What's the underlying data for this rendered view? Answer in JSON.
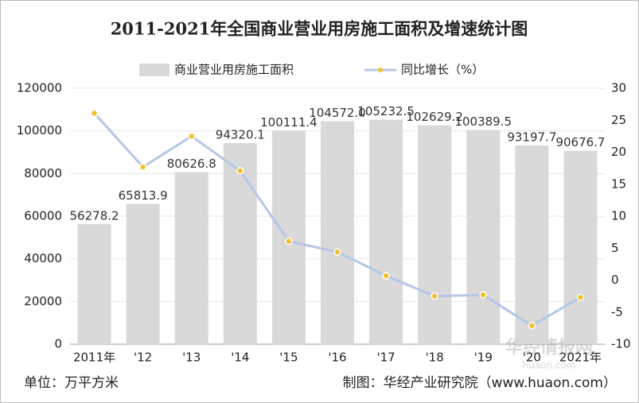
{
  "chart_data": {
    "type": "bar",
    "title": "2011-2021年全国商业营业用房施工面积及增速统计图",
    "categories": [
      "2011年",
      "'12",
      "'13",
      "'14",
      "'15",
      "'16",
      "'17",
      "'18",
      "'19",
      "'20",
      "2021年"
    ],
    "series": [
      {
        "name": "商业营业用房施工面积",
        "color": "#d9d9d9",
        "values": [
          56278.2,
          65813.9,
          80626.8,
          94320.1,
          100111.4,
          104572.0,
          105232.5,
          102629.2,
          100389.5,
          93197.7,
          90676.7
        ],
        "value_labels": [
          "56278.2",
          "65813.9",
          "80626.8",
          "94320.1",
          "100111.4",
          "104572.0",
          "105232.5",
          "102629.2",
          "100389.5",
          "93197.7",
          "90676.7"
        ]
      },
      {
        "name": "同比增长（%）",
        "type": "line",
        "axis": "y2",
        "color": "#b4c7e7",
        "marker_color": "#f2c230",
        "values": [
          26.1,
          17.7,
          22.5,
          17.1,
          6.1,
          4.4,
          0.7,
          -2.5,
          -2.3,
          -7.1,
          -2.7
        ]
      }
    ],
    "ylim": [
      0,
      120000
    ],
    "yticks": [
      0,
      20000,
      40000,
      60000,
      80000,
      100000,
      120000
    ],
    "y2lim": [
      -10,
      30
    ],
    "y2ticks": [
      -10,
      -5,
      0,
      5,
      10,
      15,
      20,
      25,
      30
    ],
    "grid": true,
    "unit_note": "单位：万平方米",
    "source": "制图：华经产业研究院（www.huaon.com）",
    "watermark": "华经情报网",
    "watermark_url": "huaon.com"
  }
}
